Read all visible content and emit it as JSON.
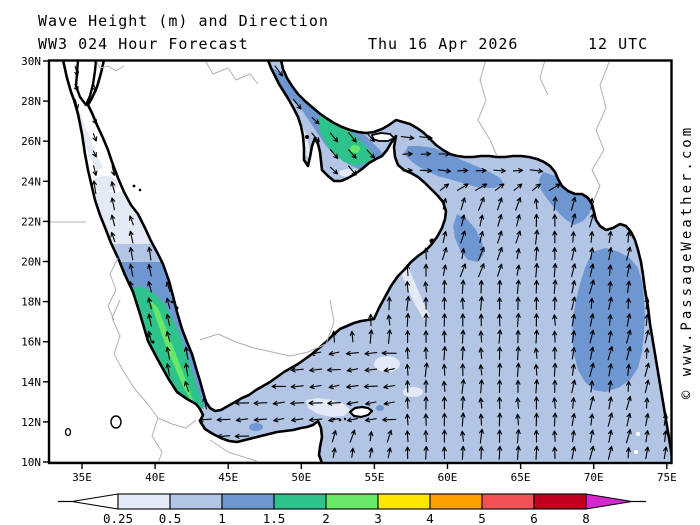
{
  "header": {
    "title": "Wave Height (m) and Direction",
    "model_run": "WW3 024 Hour Forecast",
    "valid_date": "Thu 16 Apr 2026",
    "valid_time": "12 UTC"
  },
  "watermark": "© www.PassageWeather.com",
  "axes": {
    "lat": [
      "30N",
      "28N",
      "26N",
      "24N",
      "22N",
      "20N",
      "18N",
      "16N",
      "14N",
      "12N",
      "10N"
    ],
    "lon": [
      "35E",
      "40E",
      "45E",
      "50E",
      "55E",
      "60E",
      "65E",
      "70E",
      "75E"
    ]
  },
  "colorbar": {
    "labels": [
      "0.25",
      "0.5",
      "1",
      "1.5",
      "2",
      "3",
      "4",
      "5",
      "6",
      "8"
    ],
    "colors": [
      "#e3eaf6",
      "#b2c5e5",
      "#6e96d1",
      "#2fc38c",
      "#68e868",
      "#ffe600",
      "#ff9e00",
      "#f25052",
      "#c1001d"
    ],
    "under_color": "#ffffff",
    "over_color": "#d626d0"
  },
  "map_palette": {
    "sea_base": "#b2c5e5",
    "calm": "#ffffff",
    "h025": "#e3eaf6",
    "h1": "#6e96d1",
    "h15": "#2fc38c",
    "h2": "#68e868",
    "land": "#ffffff",
    "coast": "#000000",
    "border": "#b0b0b0",
    "arrow": "#000000"
  }
}
